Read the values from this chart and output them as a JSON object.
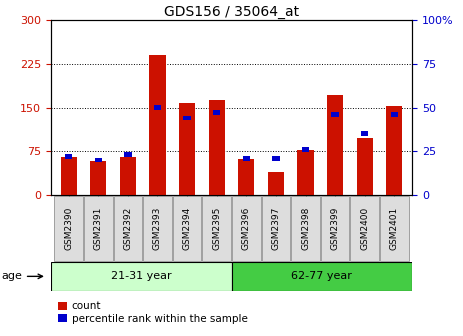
{
  "title": "GDS156 / 35064_at",
  "samples": [
    "GSM2390",
    "GSM2391",
    "GSM2392",
    "GSM2393",
    "GSM2394",
    "GSM2395",
    "GSM2396",
    "GSM2397",
    "GSM2398",
    "GSM2399",
    "GSM2400",
    "GSM2401"
  ],
  "counts": [
    65,
    58,
    65,
    240,
    158,
    163,
    62,
    40,
    77,
    172,
    97,
    152
  ],
  "percentiles": [
    22,
    20,
    23,
    50,
    44,
    47,
    21,
    21,
    26,
    46,
    35,
    46
  ],
  "groups": [
    {
      "label": "21-31 year",
      "start": 0,
      "end": 6
    },
    {
      "label": "62-77 year",
      "start": 6,
      "end": 12
    }
  ],
  "group_colors": [
    "#ccffcc",
    "#44cc44"
  ],
  "bar_color": "#cc1100",
  "percentile_color": "#0000cc",
  "ylim_left": [
    0,
    300
  ],
  "ylim_right": [
    0,
    100
  ],
  "yticks_left": [
    0,
    75,
    150,
    225,
    300
  ],
  "yticks_right": [
    0,
    25,
    50,
    75,
    100
  ],
  "left_tick_color": "#cc1100",
  "right_tick_color": "#0000cc",
  "background_color": "#ffffff",
  "bar_width": 0.55,
  "age_label": "age",
  "xtick_bg": "#dddddd"
}
